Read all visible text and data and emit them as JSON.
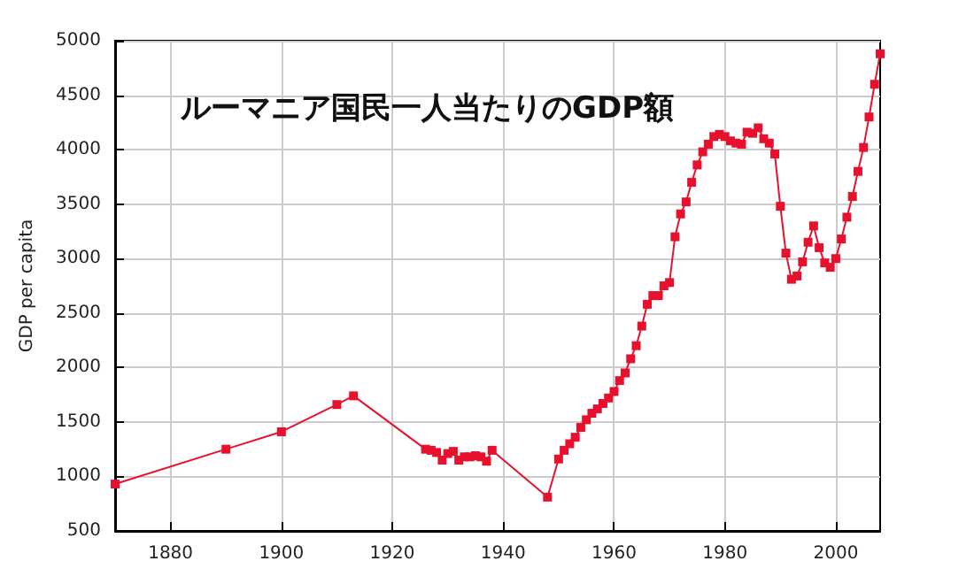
{
  "chart_data": {
    "type": "line",
    "title": "ルーマニア国民一人当たりのGDP額",
    "ylabel": "GDP per capita",
    "x": [
      1870,
      1890,
      1900,
      1910,
      1913,
      1926,
      1927,
      1928,
      1929,
      1930,
      1931,
      1932,
      1933,
      1934,
      1935,
      1936,
      1937,
      1938,
      1948,
      1950,
      1951,
      1952,
      1953,
      1954,
      1955,
      1956,
      1957,
      1958,
      1959,
      1960,
      1961,
      1962,
      1963,
      1964,
      1965,
      1966,
      1967,
      1968,
      1969,
      1970,
      1971,
      1972,
      1973,
      1974,
      1975,
      1976,
      1977,
      1978,
      1979,
      1980,
      1981,
      1982,
      1983,
      1984,
      1985,
      1986,
      1987,
      1988,
      1989,
      1990,
      1991,
      1992,
      1993,
      1994,
      1995,
      1996,
      1997,
      1998,
      1999,
      2000,
      2001,
      2002,
      2003,
      2004,
      2005,
      2006,
      2007,
      2008
    ],
    "series": [
      {
        "color": "#e8112d",
        "values": [
          930,
          1250,
          1410,
          1660,
          1740,
          1250,
          1240,
          1220,
          1150,
          1210,
          1230,
          1150,
          1180,
          1180,
          1190,
          1180,
          1140,
          1240,
          810,
          1160,
          1240,
          1300,
          1360,
          1450,
          1520,
          1580,
          1620,
          1670,
          1720,
          1780,
          1880,
          1950,
          2080,
          2200,
          2380,
          2580,
          2660,
          2660,
          2750,
          2780,
          3200,
          3410,
          3520,
          3700,
          3860,
          3980,
          4050,
          4120,
          4140,
          4120,
          4080,
          4060,
          4050,
          4160,
          4150,
          4200,
          4100,
          4060,
          3960,
          3480,
          3050,
          2810,
          2840,
          2970,
          3150,
          3300,
          3100,
          2960,
          2920,
          3000,
          3180,
          3380,
          3570,
          3800,
          4020,
          4300,
          4600,
          4880
        ]
      }
    ],
    "xlim": [
      1870,
      2008
    ],
    "xticks": [
      1880,
      1900,
      1920,
      1940,
      1960,
      1980,
      2000
    ],
    "ylim": [
      500,
      5000
    ],
    "yticks": [
      500,
      1000,
      1500,
      2000,
      2500,
      3000,
      3500,
      4000,
      4500,
      5000
    ],
    "grid": true,
    "marker": "square",
    "line_style": "solid"
  }
}
